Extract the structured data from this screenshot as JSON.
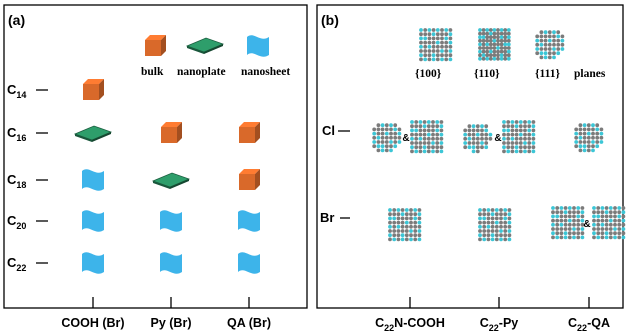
{
  "panel_a": {
    "label": "(a)",
    "legend": {
      "bulk": "bulk",
      "nanoplate": "nanoplate",
      "nanosheet": "nanosheet"
    },
    "rows": [
      {
        "base": "C",
        "sub": "14"
      },
      {
        "base": "C",
        "sub": "16"
      },
      {
        "base": "C",
        "sub": "18"
      },
      {
        "base": "C",
        "sub": "20"
      },
      {
        "base": "C",
        "sub": "22"
      }
    ],
    "columns": [
      "COOH (Br)",
      "Py (Br)",
      "QA (Br)"
    ],
    "grid": [
      [
        "bulk",
        "",
        ""
      ],
      [
        "nanoplate",
        "bulk",
        "bulk"
      ],
      [
        "nanosheet",
        "nanoplate",
        "bulk"
      ],
      [
        "nanosheet",
        "nanosheet",
        "nanosheet"
      ],
      [
        "nanosheet",
        "nanosheet",
        "nanosheet"
      ]
    ],
    "colors": {
      "bulk": "#d9692a",
      "nanoplate": "#2e9e6b",
      "nanosheet": "#3db4ea"
    }
  },
  "panel_b": {
    "label": "(b)",
    "planes": {
      "p100": "{100}",
      "p110": "{110}",
      "p111": "{111}",
      "word": "planes"
    },
    "rows": [
      "Cl",
      "Br"
    ],
    "columns": [
      {
        "base": "C",
        "sub": "22",
        "suffix": "N-COOH"
      },
      {
        "base": "C",
        "sub": "22",
        "suffix": "-Py"
      },
      {
        "base": "C",
        "sub": "22",
        "suffix": "-QA"
      }
    ],
    "amp": "&",
    "colors": {
      "atom_gray": "#7b7b7b",
      "atom_cyan": "#3cc6d6"
    }
  }
}
